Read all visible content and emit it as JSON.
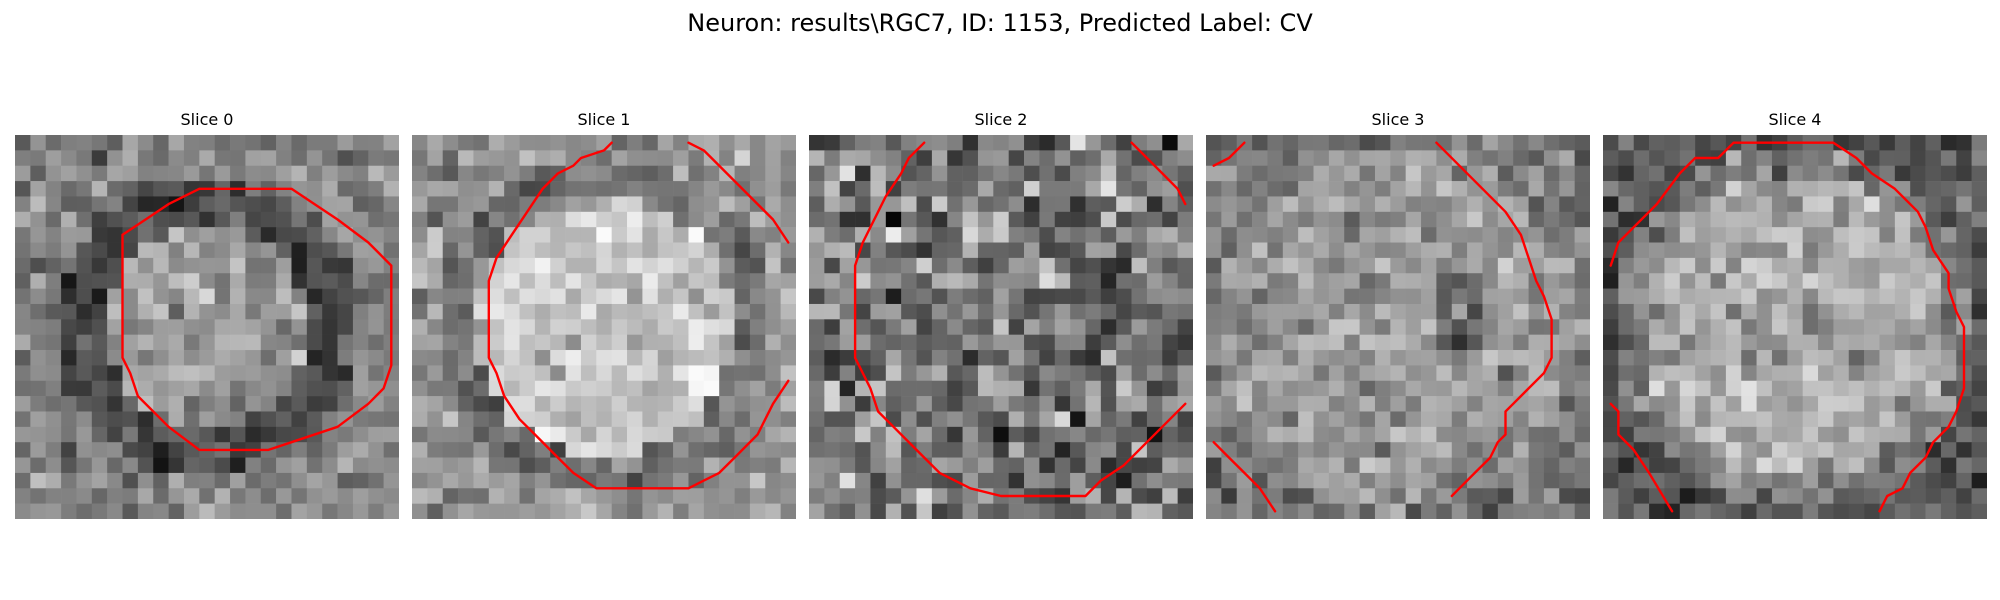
{
  "figure": {
    "title": "Neuron: results\\RGC7, ID: 1153, Predicted Label: CV"
  },
  "slices": [
    {
      "title": "Slice 0",
      "pattern": "ring_dark",
      "seed": 11,
      "contours": [
        [
          [
            12,
            3.5
          ],
          [
            18,
            3.5
          ],
          [
            19.5,
            4.5
          ],
          [
            21,
            5.5
          ],
          [
            23,
            7
          ],
          [
            24.5,
            8.5
          ],
          [
            24.5,
            15
          ],
          [
            24,
            16.5
          ],
          [
            23,
            17.5
          ],
          [
            21,
            19
          ],
          [
            18,
            20
          ],
          [
            16.5,
            20.5
          ],
          [
            12,
            20.5
          ],
          [
            10,
            19
          ],
          [
            8,
            17
          ],
          [
            7.5,
            15.5
          ],
          [
            7,
            14.5
          ],
          [
            7,
            6.5
          ],
          [
            8.5,
            5.5
          ],
          [
            10,
            4.5
          ],
          [
            12,
            3.5
          ]
        ]
      ]
    },
    {
      "title": "Slice 1",
      "pattern": "bright_disk",
      "seed": 23,
      "contours": [
        [
          [
            13,
            0.5
          ],
          [
            12.5,
            1
          ],
          [
            11,
            1.5
          ],
          [
            10.5,
            2
          ],
          [
            9.5,
            2.5
          ],
          [
            8.5,
            3.5
          ],
          [
            7.5,
            5
          ],
          [
            6.5,
            6.5
          ],
          [
            5.5,
            8
          ],
          [
            5,
            9.5
          ],
          [
            5,
            14.5
          ],
          [
            5.5,
            15.5
          ],
          [
            6,
            17
          ],
          [
            7,
            18.5
          ],
          [
            8,
            19.5
          ],
          [
            9.5,
            21
          ],
          [
            10.5,
            22
          ],
          [
            12,
            23
          ],
          [
            18,
            23
          ],
          [
            19,
            22.5
          ],
          [
            20,
            22
          ],
          [
            21,
            21
          ],
          [
            22.5,
            19.5
          ],
          [
            23.5,
            17.5
          ],
          [
            24.5,
            16
          ]
        ],
        [
          [
            18,
            0.5
          ],
          [
            19,
            1
          ],
          [
            19.5,
            1.5
          ],
          [
            21,
            3
          ],
          [
            22.5,
            4.5
          ],
          [
            23.5,
            5.5
          ],
          [
            24.5,
            7
          ]
        ]
      ]
    },
    {
      "title": "Slice 2",
      "pattern": "noise",
      "seed": 37,
      "contours": [
        [
          [
            7.5,
            0.5
          ],
          [
            6.5,
            1.5
          ],
          [
            6,
            2.5
          ],
          [
            5,
            4
          ],
          [
            4.5,
            5
          ],
          [
            3.5,
            7
          ],
          [
            3,
            8.5
          ],
          [
            3,
            14.5
          ],
          [
            3.5,
            15.5
          ],
          [
            4,
            16.5
          ],
          [
            4.5,
            18
          ],
          [
            5.5,
            19
          ],
          [
            7,
            20.5
          ],
          [
            8.5,
            22
          ],
          [
            9.5,
            22.5
          ],
          [
            10.5,
            23
          ],
          [
            12.5,
            23.5
          ],
          [
            18,
            23.5
          ],
          [
            19,
            22.5
          ],
          [
            20.5,
            21.5
          ],
          [
            22,
            20
          ],
          [
            23,
            19
          ],
          [
            24.5,
            17.5
          ]
        ],
        [
          [
            21,
            0.5
          ],
          [
            22,
            1.5
          ],
          [
            23,
            2.5
          ],
          [
            24,
            3.5
          ],
          [
            24.5,
            4.5
          ]
        ]
      ]
    },
    {
      "title": "Slice 3",
      "pattern": "gray_speckle",
      "seed": 53,
      "contours": [
        [
          [
            15,
            0.5
          ],
          [
            16.5,
            2
          ],
          [
            18,
            3.5
          ],
          [
            19.5,
            5
          ],
          [
            20.5,
            6.5
          ],
          [
            21,
            8
          ],
          [
            21.5,
            9.5
          ],
          [
            22,
            10.5
          ],
          [
            22.5,
            12
          ],
          [
            22.5,
            14.5
          ],
          [
            22,
            15.5
          ],
          [
            21,
            16.5
          ],
          [
            20,
            17.5
          ],
          [
            19.5,
            18
          ],
          [
            19.5,
            19.5
          ],
          [
            19,
            20
          ],
          [
            18.5,
            21
          ],
          [
            17.5,
            22
          ],
          [
            16.5,
            23
          ],
          [
            16,
            23.5
          ]
        ],
        [
          [
            0.5,
            2
          ],
          [
            1.5,
            1.5
          ],
          [
            2.5,
            0.5
          ]
        ],
        [
          [
            0.5,
            20
          ],
          [
            1.5,
            21
          ],
          [
            2.5,
            22
          ],
          [
            3.5,
            23
          ],
          [
            4.5,
            24.5
          ]
        ]
      ]
    },
    {
      "title": "Slice 4",
      "pattern": "bright_center_dark_edge",
      "seed": 71,
      "contours": [
        [
          [
            0.5,
            8.5
          ],
          [
            1,
            7
          ],
          [
            2,
            6
          ],
          [
            3.5,
            4.5
          ],
          [
            5,
            2.5
          ],
          [
            6,
            1.5
          ],
          [
            7.5,
            1.5
          ],
          [
            8.5,
            0.5
          ],
          [
            15,
            0.5
          ],
          [
            16.5,
            1.5
          ],
          [
            17.5,
            2.5
          ],
          [
            19,
            3.5
          ],
          [
            20.5,
            5
          ],
          [
            21,
            6
          ],
          [
            21.5,
            7.5
          ],
          [
            22.5,
            9
          ],
          [
            22.5,
            10
          ],
          [
            23,
            11.5
          ],
          [
            23.5,
            12.5
          ],
          [
            23.5,
            16.5
          ],
          [
            23,
            18
          ],
          [
            22.5,
            19
          ],
          [
            21.5,
            20
          ],
          [
            21,
            21
          ],
          [
            20,
            22
          ],
          [
            19.5,
            23
          ],
          [
            18.5,
            23.5
          ],
          [
            18,
            24.5
          ]
        ],
        [
          [
            0.5,
            17.5
          ],
          [
            1,
            18
          ],
          [
            1,
            19.5
          ],
          [
            2,
            20.5
          ],
          [
            3,
            22
          ],
          [
            4.5,
            24.5
          ]
        ]
      ]
    }
  ]
}
